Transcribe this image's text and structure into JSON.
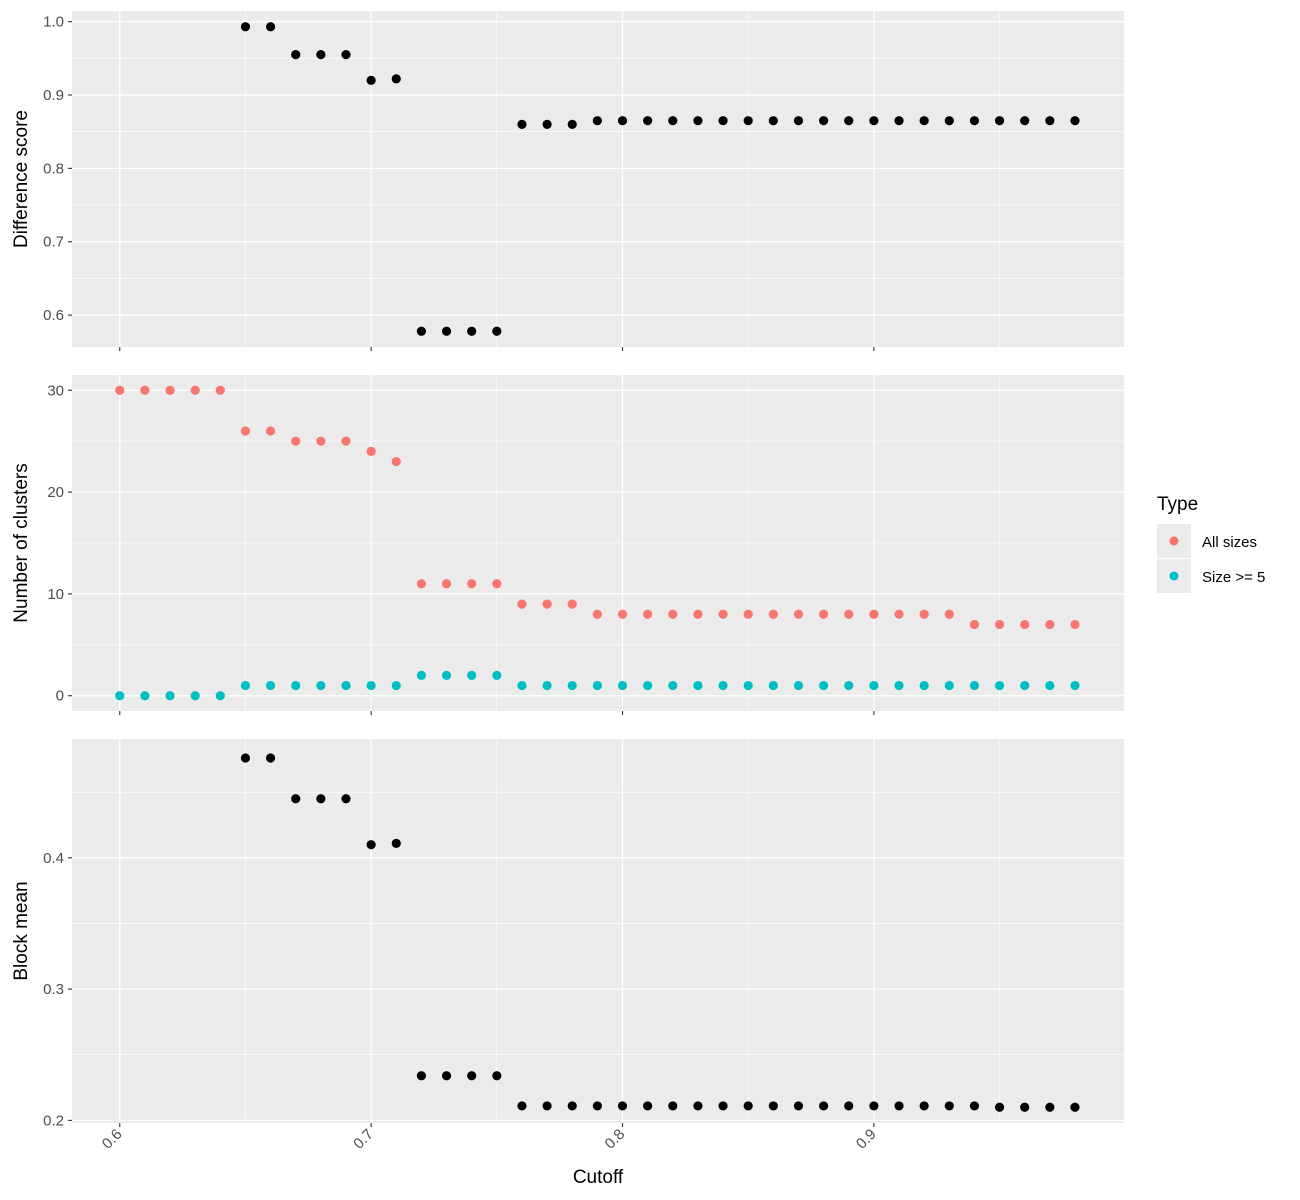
{
  "chart_data": {
    "type": "scatter",
    "x_label": "Cutoff",
    "x_range": [
      0.581,
      0.9995
    ],
    "x_ticks": [
      0.6,
      0.7,
      0.8,
      0.9
    ],
    "x_tick_labels": [
      "0.6",
      "0.7",
      "0.8",
      "0.9"
    ],
    "x_values": [
      0.6,
      0.61,
      0.62,
      0.63,
      0.64,
      0.65,
      0.66,
      0.67,
      0.68,
      0.69,
      0.7,
      0.71,
      0.72,
      0.73,
      0.74,
      0.75,
      0.76,
      0.77,
      0.78,
      0.79,
      0.8,
      0.81,
      0.82,
      0.83,
      0.84,
      0.85,
      0.86,
      0.87,
      0.88,
      0.89,
      0.9,
      0.91,
      0.92,
      0.93,
      0.94,
      0.95,
      0.96,
      0.97,
      0.98
    ],
    "grid": true,
    "legend": {
      "title": "Type",
      "position": "right",
      "entries": [
        {
          "label": "All sizes",
          "color": "#f8766d"
        },
        {
          "label": "Size >= 5",
          "color": "#00bfc4"
        }
      ]
    },
    "panels": [
      {
        "ylabel": "Difference score",
        "ylim": [
          0.5565,
          1.0145
        ],
        "y_ticks": [
          0.6,
          0.7,
          0.8,
          0.9,
          1.0
        ],
        "y_tick_labels": [
          "0.6",
          "0.7",
          "0.8",
          "0.9",
          "1.0"
        ],
        "series": [
          {
            "color": "#000000",
            "x_start_index": 5,
            "values": [
              0.993,
              0.993,
              0.955,
              0.955,
              0.955,
              0.92,
              0.922,
              0.578,
              0.578,
              0.578,
              0.578,
              0.86,
              0.86,
              0.86,
              0.865,
              0.865,
              0.865,
              0.865,
              0.865,
              0.865,
              0.865,
              0.865,
              0.865,
              0.865,
              0.865,
              0.865,
              0.865,
              0.865,
              0.865,
              0.865,
              0.865,
              0.865,
              0.865,
              0.865
            ]
          }
        ]
      },
      {
        "ylabel": "Number of clusters",
        "ylim": [
          -1.5,
          31.5
        ],
        "y_ticks": [
          0,
          10,
          20,
          30
        ],
        "y_tick_labels": [
          "0",
          "10",
          "20",
          "30"
        ],
        "series": [
          {
            "name": "All sizes",
            "color": "#f8766d",
            "x_start_index": 0,
            "values": [
              30,
              30,
              30,
              30,
              30,
              26,
              26,
              25,
              25,
              25,
              24,
              23,
              11,
              11,
              11,
              11,
              9,
              9,
              9,
              8,
              8,
              8,
              8,
              8,
              8,
              8,
              8,
              8,
              8,
              8,
              8,
              8,
              8,
              8,
              7,
              7,
              7,
              7,
              7
            ]
          },
          {
            "name": "Size >= 5",
            "color": "#00bfc4",
            "x_start_index": 0,
            "values": [
              0,
              0,
              0,
              0,
              0,
              1,
              1,
              1,
              1,
              1,
              1,
              1,
              2,
              2,
              2,
              2,
              1,
              1,
              1,
              1,
              1,
              1,
              1,
              1,
              1,
              1,
              1,
              1,
              1,
              1,
              1,
              1,
              1,
              1,
              1,
              1,
              1,
              1,
              1
            ]
          }
        ]
      },
      {
        "ylabel": "Block mean",
        "ylim": [
          0.198,
          0.4905
        ],
        "y_ticks": [
          0.2,
          0.3,
          0.4
        ],
        "y_tick_labels": [
          "0.2",
          "0.3",
          "0.4"
        ],
        "series": [
          {
            "color": "#000000",
            "x_start_index": 5,
            "values": [
              0.476,
              0.476,
              0.445,
              0.445,
              0.445,
              0.41,
              0.411,
              0.234,
              0.234,
              0.234,
              0.234,
              0.211,
              0.211,
              0.211,
              0.211,
              0.211,
              0.211,
              0.211,
              0.211,
              0.211,
              0.211,
              0.211,
              0.211,
              0.211,
              0.211,
              0.211,
              0.211,
              0.211,
              0.211,
              0.211,
              0.21,
              0.21,
              0.21,
              0.21
            ]
          }
        ]
      }
    ]
  }
}
